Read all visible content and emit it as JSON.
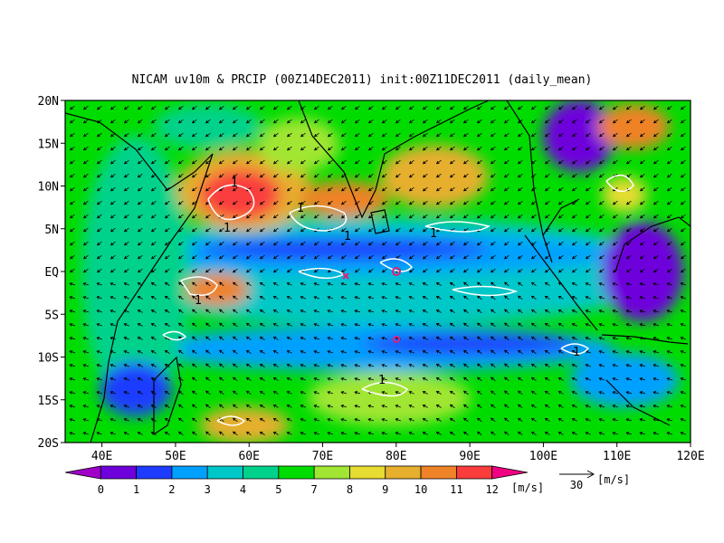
{
  "map": {
    "title": "NICAM uv10m & PRCIP (00Z14DEC2011) init:00Z11DEC2011 (daily_mean)",
    "lon_range": [
      35,
      120
    ],
    "lat_range": [
      -20,
      20
    ],
    "lat_ticks": [
      {
        "value": 20,
        "label": "20N"
      },
      {
        "value": 15,
        "label": "15N"
      },
      {
        "value": 10,
        "label": "10N"
      },
      {
        "value": 5,
        "label": "5N"
      },
      {
        "value": 0,
        "label": "EQ"
      },
      {
        "value": -5,
        "label": "5S"
      },
      {
        "value": -10,
        "label": "10S"
      },
      {
        "value": -15,
        "label": "15S"
      },
      {
        "value": -20,
        "label": "20S"
      }
    ],
    "lon_ticks": [
      {
        "value": 40,
        "label": "40E"
      },
      {
        "value": 50,
        "label": "50E"
      },
      {
        "value": 60,
        "label": "60E"
      },
      {
        "value": 70,
        "label": "70E"
      },
      {
        "value": 80,
        "label": "80E"
      },
      {
        "value": 90,
        "label": "90E"
      },
      {
        "value": 100,
        "label": "100E"
      },
      {
        "value": 110,
        "label": "110E"
      },
      {
        "value": 120,
        "label": "120E"
      }
    ],
    "contour_label": "1",
    "colorbar": {
      "levels": [
        0,
        1,
        2,
        3,
        4,
        5,
        7,
        8,
        9,
        10,
        11,
        12
      ],
      "colors": [
        "#a000c8",
        "#6e00dc",
        "#1e3cff",
        "#00a0ff",
        "#00c8c8",
        "#00d28c",
        "#00dc00",
        "#a0e632",
        "#e6dc32",
        "#e6af2d",
        "#f08228",
        "#fa3c3c",
        "#f00082"
      ],
      "unit": "[m/s]"
    },
    "reference_vector": {
      "value": 30,
      "unit": "[m/s]"
    }
  }
}
